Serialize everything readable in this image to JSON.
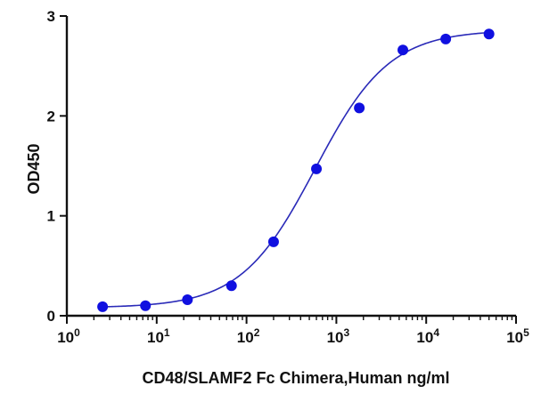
{
  "chart_data": {
    "type": "scatter",
    "title": "",
    "xlabel": "CD48/SLAMF2 Fc Chimera,Human ng/ml",
    "ylabel": "OD450",
    "x_scale": "log10",
    "xlim": [
      1,
      100000
    ],
    "ylim": [
      0,
      3
    ],
    "x_ticks": [
      {
        "base": "10",
        "exp": "0"
      },
      {
        "base": "10",
        "exp": "1"
      },
      {
        "base": "10",
        "exp": "2"
      },
      {
        "base": "10",
        "exp": "3"
      },
      {
        "base": "10",
        "exp": "4"
      },
      {
        "base": "10",
        "exp": "5"
      }
    ],
    "y_ticks": [
      "0",
      "1",
      "2",
      "3"
    ],
    "grid": false,
    "legend": "none",
    "point_color": "#1010e0",
    "line_color": "#2a2ab8",
    "series": [
      {
        "x": [
          2.5,
          7.5,
          22,
          68,
          200,
          600,
          1800,
          5500,
          16500,
          50000
        ],
        "y": [
          0.09,
          0.1,
          0.16,
          0.3,
          0.74,
          1.47,
          2.08,
          2.66,
          2.77,
          2.82
        ]
      }
    ],
    "fit": {
      "model": "4PL",
      "bottom": 0.08,
      "top": 2.86,
      "ec50": 580,
      "hill": 1.05
    }
  }
}
